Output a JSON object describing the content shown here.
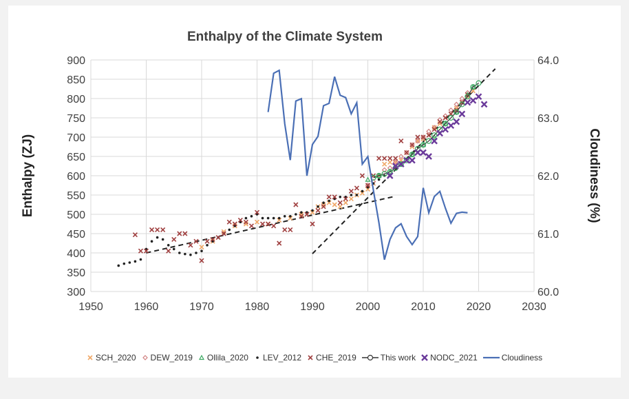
{
  "chart_data": {
    "type": "scatter",
    "title": "Enthalpy of the Climate System",
    "ylabel": "Enthalpy (ZJ)",
    "y2label": "Cloudiness (%)",
    "xlim": [
      1950,
      2030
    ],
    "ylim": [
      300,
      900
    ],
    "y2lim": [
      60.0,
      64.0
    ],
    "xticks": [
      "1950",
      "1960",
      "1970",
      "1980",
      "1990",
      "2000",
      "2010",
      "2020",
      "2030"
    ],
    "yticks": [
      "300",
      "350",
      "400",
      "450",
      "500",
      "550",
      "600",
      "650",
      "700",
      "750",
      "800",
      "850",
      "900"
    ],
    "y2ticks": [
      "60.0",
      "61.0",
      "62.0",
      "63.0",
      "64.0"
    ],
    "grid": true,
    "legend_position": "bottom",
    "colors": {
      "SCH_2020": "#f0a868",
      "DEW_2019": "#d08080",
      "Ollila_2020": "#3aa860",
      "LEV_2012": "#222222",
      "CHE_2019": "#a04040",
      "This work": "#333333",
      "NODC_2021": "#6a3a9a",
      "Cloudiness": "#4a6fb5",
      "trend": "#222222"
    },
    "series": [
      {
        "name": "SCH_2020",
        "marker": "x",
        "x": [
          1970,
          1972,
          1974,
          1976,
          1978,
          1980,
          1982,
          1984,
          1986,
          1988,
          1990,
          1991,
          1992,
          1993,
          1994,
          1995,
          1996,
          1997,
          1998,
          1999,
          2000,
          2001,
          2002,
          2003,
          2004,
          2005,
          2006,
          2007,
          2008,
          2009,
          2010,
          2011,
          2012,
          2013,
          2014,
          2015,
          2016,
          2017,
          2018,
          2019
        ],
        "y": [
          415,
          430,
          455,
          470,
          475,
          480,
          475,
          485,
          490,
          500,
          505,
          520,
          525,
          530,
          525,
          520,
          530,
          540,
          550,
          555,
          565,
          580,
          600,
          630,
          635,
          635,
          640,
          660,
          675,
          690,
          695,
          705,
          725,
          735,
          750,
          760,
          775,
          790,
          805,
          820
        ]
      },
      {
        "name": "DEW_2019",
        "marker": "diamond",
        "x": [
          2000,
          2001,
          2002,
          2003,
          2004,
          2005,
          2006,
          2007,
          2008,
          2009,
          2010,
          2011,
          2012,
          2013,
          2014,
          2015,
          2016,
          2017,
          2018
        ],
        "y": [
          575,
          585,
          600,
          615,
          620,
          635,
          650,
          660,
          680,
          690,
          700,
          715,
          725,
          745,
          755,
          770,
          785,
          800,
          815
        ]
      },
      {
        "name": "Ollila_2020",
        "marker": "triangle",
        "x": [
          2000,
          2002,
          2004,
          2006,
          2008,
          2010,
          2012,
          2014,
          2016,
          2018,
          2019
        ],
        "y": [
          590,
          600,
          610,
          630,
          655,
          680,
          700,
          735,
          765,
          810,
          830
        ]
      },
      {
        "name": "LEV_2012",
        "marker": "plus",
        "x": [
          1955,
          1956,
          1957,
          1958,
          1959,
          1960,
          1961,
          1962,
          1963,
          1964,
          1965,
          1966,
          1967,
          1968,
          1969,
          1970,
          1971,
          1972,
          1973,
          1974,
          1975,
          1976,
          1977,
          1978,
          1979,
          1980,
          1981,
          1982,
          1983,
          1984,
          1985,
          1986,
          1987,
          1988,
          1989,
          1990,
          1991,
          1992,
          1993,
          1994,
          1995,
          1996,
          1997,
          1998,
          1999,
          2000,
          2001,
          2002,
          2003
        ],
        "y": [
          367,
          372,
          375,
          378,
          383,
          410,
          430,
          440,
          435,
          420,
          410,
          400,
          397,
          395,
          400,
          405,
          420,
          430,
          440,
          450,
          460,
          470,
          480,
          490,
          495,
          500,
          490,
          490,
          490,
          490,
          495,
          495,
          500,
          505,
          505,
          510,
          520,
          530,
          535,
          540,
          545,
          545,
          550,
          550,
          560,
          570,
          580,
          590,
          600
        ]
      },
      {
        "name": "CHE_2019",
        "marker": "x",
        "x": [
          1958,
          1959,
          1960,
          1961,
          1962,
          1963,
          1964,
          1965,
          1966,
          1967,
          1968,
          1969,
          1970,
          1971,
          1972,
          1973,
          1974,
          1975,
          1976,
          1977,
          1978,
          1979,
          1980,
          1981,
          1982,
          1983,
          1984,
          1985,
          1986,
          1987,
          1988,
          1989,
          1990,
          1991,
          1992,
          1993,
          1994,
          1995,
          1996,
          1997,
          1998,
          1999,
          2000,
          2001,
          2002,
          2003,
          2004,
          2005,
          2006,
          2007,
          2008,
          2009,
          2010,
          2011,
          2012,
          2013,
          2014,
          2015,
          2016,
          2017,
          2018
        ],
        "y": [
          447,
          405,
          405,
          460,
          460,
          460,
          405,
          435,
          450,
          450,
          420,
          430,
          380,
          430,
          435,
          440,
          450,
          480,
          475,
          485,
          480,
          470,
          505,
          475,
          475,
          470,
          425,
          460,
          460,
          525,
          495,
          500,
          475,
          510,
          520,
          545,
          545,
          530,
          540,
          560,
          568,
          600,
          575,
          600,
          645,
          645,
          645,
          645,
          690,
          660,
          680,
          700,
          700,
          705,
          720,
          740,
          750,
          760,
          770,
          790,
          810
        ]
      },
      {
        "name": "This work",
        "marker": "circle-line",
        "x": [
          2001,
          2002,
          2003,
          2004,
          2005,
          2006,
          2007,
          2008,
          2009,
          2010,
          2011,
          2012,
          2013,
          2014,
          2015,
          2016,
          2017,
          2018,
          2019,
          2020
        ],
        "y": [
          595,
          600,
          605,
          610,
          620,
          630,
          640,
          655,
          670,
          680,
          690,
          705,
          720,
          735,
          750,
          765,
          785,
          805,
          830,
          840
        ]
      },
      {
        "name": "NODC_2021",
        "marker": "x-bold",
        "x": [
          2004,
          2005,
          2006,
          2007,
          2008,
          2009,
          2010,
          2011,
          2012,
          2013,
          2014,
          2015,
          2016,
          2017,
          2018,
          2019,
          2020,
          2021
        ],
        "y": [
          600,
          625,
          630,
          640,
          640,
          660,
          660,
          650,
          690,
          710,
          720,
          730,
          740,
          760,
          790,
          795,
          805,
          785
        ]
      },
      {
        "name": "Cloudiness",
        "marker": "line",
        "axis": "right",
        "x": [
          1982,
          1983,
          1984,
          1985,
          1986,
          1987,
          1988,
          1989,
          1990,
          1991,
          1992,
          1993,
          1994,
          1995,
          1996,
          1997,
          1998,
          1999,
          2000,
          2001,
          2002,
          2003,
          2004,
          2005,
          2006,
          2007,
          2008,
          2009,
          2010,
          2011,
          2012,
          2013,
          2014,
          2015,
          2016,
          2017,
          2018
        ],
        "y": [
          63.1,
          63.77,
          63.82,
          62.9,
          62.27,
          63.29,
          63.33,
          62.0,
          62.54,
          62.68,
          63.21,
          63.25,
          63.71,
          63.39,
          63.35,
          63.07,
          63.26,
          62.2,
          62.33,
          61.75,
          61.19,
          60.55,
          60.9,
          61.1,
          61.17,
          60.95,
          60.81,
          60.95,
          61.79,
          61.36,
          61.64,
          61.73,
          61.44,
          61.18,
          61.35,
          61.37,
          61.36
        ]
      }
    ],
    "trendlines": [
      {
        "x": [
          1960,
          2005
        ],
        "y": [
          400,
          547
        ]
      },
      {
        "x": [
          1990,
          2023
        ],
        "y": [
          398,
          877
        ]
      }
    ]
  }
}
